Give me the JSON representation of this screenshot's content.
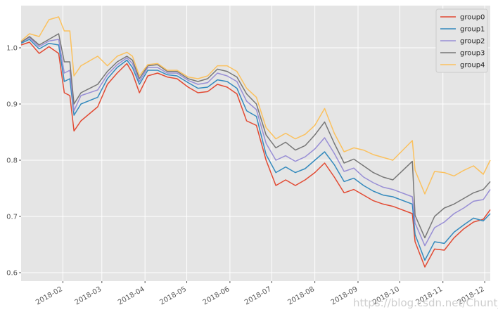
{
  "chart_data": {
    "type": "line",
    "title": "",
    "xlabel": "",
    "ylabel": "",
    "xlim": [
      "2018-01-02",
      "2018-12-05"
    ],
    "ylim": [
      0.585,
      1.075
    ],
    "grid": true,
    "legend_position": "top-right",
    "x_ticks": [
      "2018-02",
      "2018-03",
      "2018-04",
      "2018-05",
      "2018-06",
      "2018-07",
      "2018-08",
      "2018-09",
      "2018-10",
      "2018-11",
      "2018-12"
    ],
    "y_ticks": [
      "0.6",
      "0.7",
      "0.8",
      "0.9",
      "1.0"
    ],
    "x": [
      "2018-01-02",
      "2018-01-08",
      "2018-01-15",
      "2018-01-22",
      "2018-01-29",
      "2018-02-02",
      "2018-02-06",
      "2018-02-09",
      "2018-02-14",
      "2018-02-26",
      "2018-03-05",
      "2018-03-12",
      "2018-03-19",
      "2018-03-23",
      "2018-03-28",
      "2018-04-03",
      "2018-04-10",
      "2018-04-17",
      "2018-04-24",
      "2018-05-02",
      "2018-05-09",
      "2018-05-16",
      "2018-05-23",
      "2018-05-30",
      "2018-06-06",
      "2018-06-13",
      "2018-06-20",
      "2018-06-27",
      "2018-07-04",
      "2018-07-11",
      "2018-07-18",
      "2018-07-25",
      "2018-08-01",
      "2018-08-08",
      "2018-08-15",
      "2018-08-22",
      "2018-08-29",
      "2018-09-05",
      "2018-09-12",
      "2018-09-19",
      "2018-09-26",
      "2018-10-10",
      "2018-10-12",
      "2018-10-19",
      "2018-10-26",
      "2018-11-02",
      "2018-11-09",
      "2018-11-16",
      "2018-11-23",
      "2018-11-30",
      "2018-12-05"
    ],
    "series": [
      {
        "name": "group0",
        "color": "#e24a33",
        "values": [
          1.005,
          1.01,
          0.99,
          1.002,
          0.99,
          0.92,
          0.915,
          0.852,
          0.87,
          0.895,
          0.935,
          0.955,
          0.972,
          0.955,
          0.92,
          0.95,
          0.955,
          0.948,
          0.945,
          0.93,
          0.92,
          0.922,
          0.935,
          0.93,
          0.918,
          0.87,
          0.862,
          0.8,
          0.755,
          0.765,
          0.755,
          0.765,
          0.778,
          0.795,
          0.77,
          0.742,
          0.748,
          0.738,
          0.728,
          0.722,
          0.718,
          0.705,
          0.655,
          0.61,
          0.642,
          0.64,
          0.662,
          0.678,
          0.69,
          0.695,
          0.712
        ]
      },
      {
        "name": "group1",
        "color": "#348abd",
        "values": [
          1.008,
          1.015,
          0.998,
          1.008,
          1.005,
          0.94,
          0.945,
          0.88,
          0.9,
          0.912,
          0.945,
          0.965,
          0.978,
          0.965,
          0.935,
          0.96,
          0.96,
          0.952,
          0.95,
          0.938,
          0.928,
          0.93,
          0.943,
          0.94,
          0.928,
          0.888,
          0.878,
          0.81,
          0.778,
          0.788,
          0.778,
          0.785,
          0.8,
          0.815,
          0.792,
          0.762,
          0.768,
          0.755,
          0.745,
          0.738,
          0.735,
          0.722,
          0.668,
          0.622,
          0.655,
          0.652,
          0.672,
          0.685,
          0.697,
          0.692,
          0.705
        ]
      },
      {
        "name": "group2",
        "color": "#988ed5",
        "values": [
          1.01,
          1.018,
          1.002,
          1.012,
          1.015,
          0.955,
          0.96,
          0.888,
          0.915,
          0.925,
          0.952,
          0.97,
          0.982,
          0.972,
          0.94,
          0.965,
          0.965,
          0.955,
          0.955,
          0.942,
          0.935,
          0.938,
          0.955,
          0.95,
          0.94,
          0.905,
          0.89,
          0.83,
          0.8,
          0.808,
          0.798,
          0.806,
          0.82,
          0.84,
          0.812,
          0.78,
          0.786,
          0.77,
          0.76,
          0.752,
          0.748,
          0.735,
          0.688,
          0.648,
          0.68,
          0.69,
          0.705,
          0.715,
          0.727,
          0.73,
          0.748
        ]
      },
      {
        "name": "group3",
        "color": "#777777",
        "values": [
          1.01,
          1.02,
          1.005,
          1.015,
          1.025,
          0.975,
          0.975,
          0.9,
          0.92,
          0.935,
          0.958,
          0.975,
          0.985,
          0.978,
          0.945,
          0.968,
          0.97,
          0.958,
          0.958,
          0.945,
          0.94,
          0.945,
          0.962,
          0.958,
          0.948,
          0.918,
          0.9,
          0.845,
          0.822,
          0.832,
          0.818,
          0.826,
          0.845,
          0.868,
          0.83,
          0.795,
          0.802,
          0.79,
          0.778,
          0.77,
          0.765,
          0.798,
          0.702,
          0.662,
          0.7,
          0.715,
          0.722,
          0.732,
          0.742,
          0.748,
          0.762
        ]
      },
      {
        "name": "group4",
        "color": "#fbc15e",
        "values": [
          1.012,
          1.025,
          1.02,
          1.05,
          1.055,
          1.03,
          1.03,
          0.95,
          0.968,
          0.985,
          0.968,
          0.985,
          0.992,
          0.985,
          0.95,
          0.97,
          0.972,
          0.96,
          0.96,
          0.948,
          0.945,
          0.95,
          0.968,
          0.968,
          0.958,
          0.928,
          0.912,
          0.858,
          0.838,
          0.848,
          0.838,
          0.846,
          0.862,
          0.892,
          0.848,
          0.815,
          0.822,
          0.818,
          0.81,
          0.805,
          0.8,
          0.835,
          0.782,
          0.74,
          0.78,
          0.778,
          0.772,
          0.782,
          0.79,
          0.775,
          0.8
        ]
      }
    ]
  },
  "watermark": "https://blog.csdn.net/Chunt_"
}
